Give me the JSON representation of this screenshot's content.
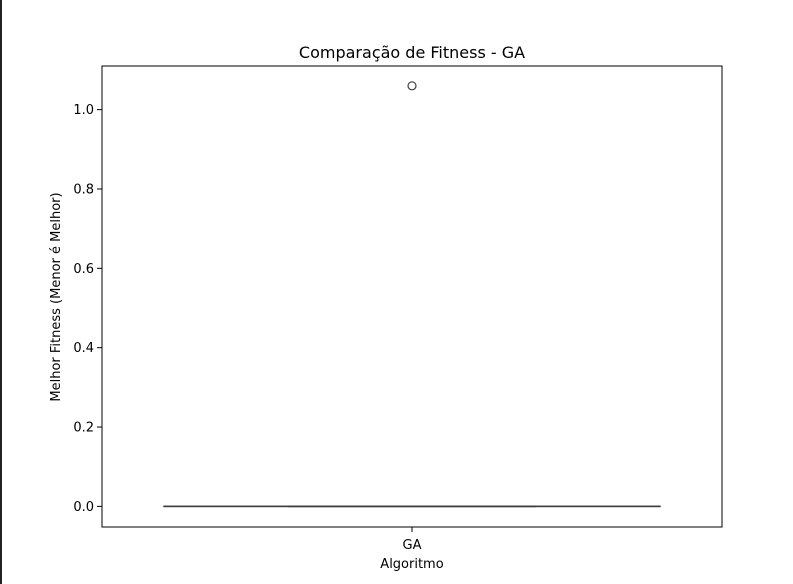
{
  "chart_data": {
    "type": "box",
    "title": "Comparação de Fitness - GA",
    "xlabel": "Algoritmo",
    "ylabel": "Melhor Fitness (Menor é Melhor)",
    "categories": [
      "GA"
    ],
    "ylim": [
      -0.052,
      1.11
    ],
    "yticks": [
      0.0,
      0.2,
      0.4,
      0.6,
      0.8,
      1.0
    ],
    "ytick_labels": [
      "0.0",
      "0.2",
      "0.4",
      "0.6",
      "0.8",
      "1.0"
    ],
    "grid": false,
    "series": [
      {
        "category": "GA",
        "min": 0.0,
        "q1": 0.0,
        "median": 0.0,
        "q3": 0.0,
        "max": 0.0,
        "outliers": [
          1.06
        ]
      }
    ],
    "colors": {
      "box_line": "#3f3f3f",
      "axes": "#000000"
    }
  }
}
